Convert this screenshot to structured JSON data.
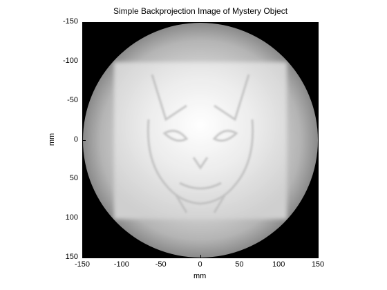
{
  "figure": {
    "title": "Simple Backprojection Image of Mystery Object",
    "xlabel": "mm",
    "ylabel": "mm"
  },
  "axes": {
    "xlim": [
      -150,
      150
    ],
    "ylim": [
      -150,
      150
    ],
    "x_ticks": [
      "-150",
      "-100",
      "-50",
      "0",
      "50",
      "100",
      "150"
    ],
    "y_ticks": [
      "-150",
      "-100",
      "-50",
      "0",
      "50",
      "100",
      "150"
    ],
    "y_direction": "reversed",
    "colormap": "gray"
  },
  "image": {
    "description_free": true,
    "reconstruction_circle_radius_mm": 150,
    "object_square_extent_mm": [
      -110,
      110,
      -100,
      100
    ]
  }
}
